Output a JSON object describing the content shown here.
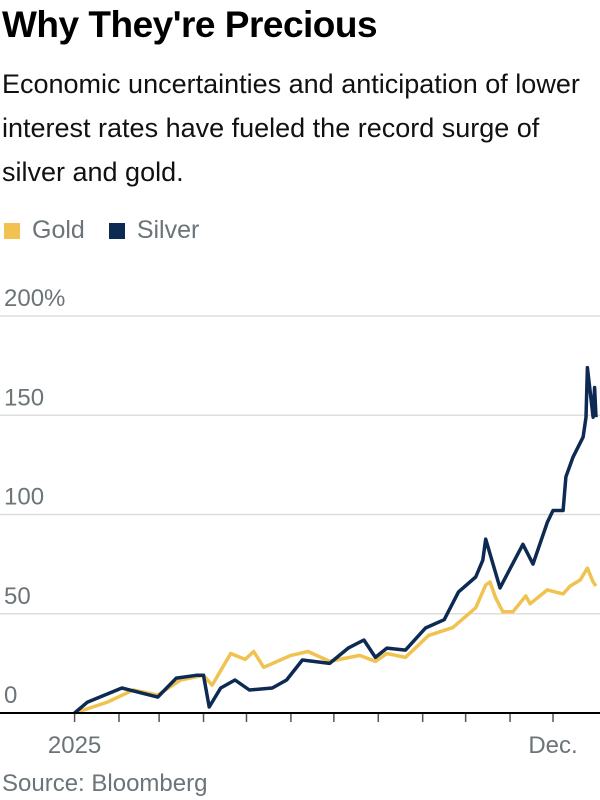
{
  "title": "Why They're Precious",
  "subtitle": "Economic uncertainties and anticipation of lower interest rates have fueled the record surge of silver and gold.",
  "source": "Source: Bloomberg",
  "chart_data": {
    "type": "line",
    "ylim": [
      0,
      200
    ],
    "yticks": [
      0,
      50,
      100,
      150,
      200
    ],
    "ytick_labels": [
      "0",
      "50",
      "100",
      "150",
      "200%"
    ],
    "xlim": [
      "2025-01-01",
      "2025-12-31"
    ],
    "xtick_labels": [
      {
        "date": "2025-01-01",
        "label": "2025"
      },
      {
        "date": "2025-12-01",
        "label": "Dec."
      }
    ],
    "grid": true,
    "legend": "top-left",
    "series": [
      {
        "name": "Gold",
        "color": "#f0c350",
        "points": [
          [
            "2025-01-01",
            0
          ],
          [
            "2025-01-24",
            5.5
          ],
          [
            "2025-02-11",
            11.6
          ],
          [
            "2025-02-28",
            9
          ],
          [
            "2025-03-16",
            16.6
          ],
          [
            "2025-04-01",
            19
          ],
          [
            "2025-04-07",
            14
          ],
          [
            "2025-04-20",
            30
          ],
          [
            "2025-04-30",
            27
          ],
          [
            "2025-05-06",
            31
          ],
          [
            "2025-05-13",
            23
          ],
          [
            "2025-06-01",
            29
          ],
          [
            "2025-06-13",
            31
          ],
          [
            "2025-06-28",
            26
          ],
          [
            "2025-07-19",
            29
          ],
          [
            "2025-07-30",
            26
          ],
          [
            "2025-08-07",
            30
          ],
          [
            "2025-08-20",
            28
          ],
          [
            "2025-09-05",
            39
          ],
          [
            "2025-09-22",
            43
          ],
          [
            "2025-10-08",
            53
          ],
          [
            "2025-10-15",
            64.5
          ],
          [
            "2025-10-18",
            66
          ],
          [
            "2025-10-22",
            58
          ],
          [
            "2025-10-27",
            51
          ],
          [
            "2025-11-03",
            51
          ],
          [
            "2025-11-12",
            59
          ],
          [
            "2025-11-15",
            55
          ],
          [
            "2025-11-27",
            62
          ],
          [
            "2025-12-08",
            60
          ],
          [
            "2025-12-13",
            64
          ],
          [
            "2025-12-20",
            67
          ],
          [
            "2025-12-25",
            73
          ],
          [
            "2025-12-29",
            66
          ],
          [
            "2025-12-31",
            64
          ]
        ]
      },
      {
        "name": "Silver",
        "color": "#0c2a52",
        "points": [
          [
            "2025-01-01",
            0
          ],
          [
            "2025-01-10",
            5.5
          ],
          [
            "2025-02-03",
            12.6
          ],
          [
            "2025-02-28",
            8
          ],
          [
            "2025-03-13",
            17.6
          ],
          [
            "2025-03-27",
            19
          ],
          [
            "2025-04-01",
            19
          ],
          [
            "2025-04-05",
            3
          ],
          [
            "2025-04-13",
            12.6
          ],
          [
            "2025-04-23",
            16.6
          ],
          [
            "2025-05-03",
            11.6
          ],
          [
            "2025-05-19",
            12.6
          ],
          [
            "2025-05-29",
            16.6
          ],
          [
            "2025-06-09",
            26.7
          ],
          [
            "2025-06-28",
            25
          ],
          [
            "2025-07-11",
            32.7
          ],
          [
            "2025-07-22",
            36.8
          ],
          [
            "2025-07-30",
            28
          ],
          [
            "2025-08-07",
            32.7
          ],
          [
            "2025-08-20",
            31.7
          ],
          [
            "2025-09-03",
            42.8
          ],
          [
            "2025-09-16",
            47
          ],
          [
            "2025-09-26",
            61
          ],
          [
            "2025-10-08",
            68.5
          ],
          [
            "2025-10-13",
            77
          ],
          [
            "2025-10-15",
            87.6
          ],
          [
            "2025-10-25",
            63
          ],
          [
            "2025-11-10",
            85
          ],
          [
            "2025-11-17",
            75
          ],
          [
            "2025-11-27",
            96
          ],
          [
            "2025-12-01",
            102
          ],
          [
            "2025-12-08",
            102
          ],
          [
            "2025-12-10",
            119
          ],
          [
            "2025-12-15",
            129
          ],
          [
            "2025-12-22",
            139
          ],
          [
            "2025-12-24",
            149
          ],
          [
            "2025-12-25",
            174
          ],
          [
            "2025-12-29",
            149
          ],
          [
            "2025-12-30",
            164
          ],
          [
            "2025-12-31",
            149
          ]
        ]
      }
    ]
  }
}
